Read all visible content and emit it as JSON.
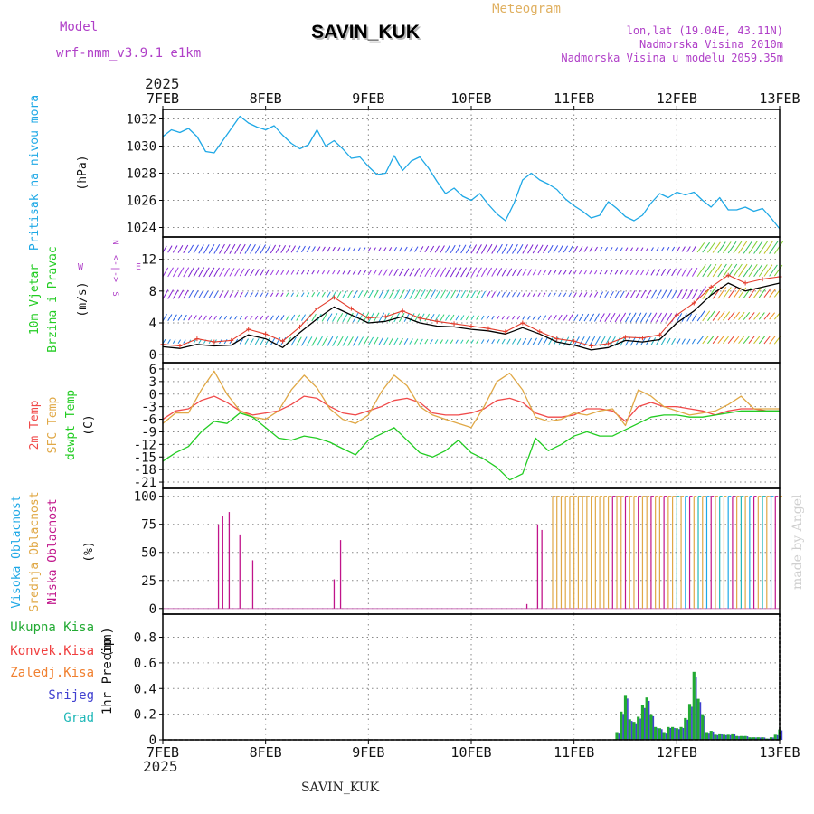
{
  "header": {
    "model_label": "Model",
    "model_name": "wrf-nmm_v3.9.1  e1km",
    "station": "SAVIN_KUK",
    "meteogram": "Meteogram",
    "lonlat": "lon,lat (19.04E, 43.11N)",
    "elevation": "Nadmorska Visina 2010m",
    "model_elevation": "Nadmorska Visina u modelu 2059.35m",
    "year": "2025",
    "footer_station": "SAVIN_KUK",
    "credit": "made by Angel"
  },
  "colors": {
    "pressure": "#1ea8e6",
    "temp2m": "#f04a4a",
    "sfc": "#e0a846",
    "dewpt": "#22cc22",
    "wind_speed": "#000000",
    "gust": "#e33c2c",
    "cloud_high": "#1ea8e6",
    "cloud_mid": "#e0a846",
    "cloud_low": "#c0148a",
    "precip_total": "#22aa33",
    "snow": "#4040d0",
    "grad": "#20b8b8",
    "label_purple": "#b040c8",
    "label_gold": "#e0b060"
  },
  "chart_data": [
    {
      "type": "line",
      "panel": "pressure",
      "ylabel_left": "Pritisak na nivou mora",
      "ylabel_unit": "(hPa)",
      "x_ticks": [
        "7FEB",
        "8FEB",
        "9FEB",
        "10FEB",
        "11FEB",
        "12FEB",
        "13FEB"
      ],
      "x_range": [
        0,
        144
      ],
      "ylim": [
        1023.3,
        1032.7
      ],
      "y_ticks": [
        "1024",
        "1026",
        "1028",
        "1030",
        "1032"
      ],
      "series": [
        {
          "x": [
            0,
            2,
            4,
            6,
            8,
            10,
            12,
            14,
            16,
            18,
            20,
            22,
            24,
            26,
            28,
            30,
            32,
            34,
            36,
            38,
            40,
            42,
            44,
            46,
            48,
            50,
            52,
            54,
            56,
            58,
            60,
            62,
            64,
            66,
            68,
            70,
            72,
            74,
            76,
            78,
            80,
            82,
            84,
            86,
            88,
            90,
            92,
            94,
            96,
            98,
            100,
            102,
            104,
            106,
            108,
            110,
            112,
            114,
            116,
            118,
            120,
            122,
            124,
            126,
            128,
            130,
            132,
            134,
            136,
            138,
            140,
            142,
            144
          ],
          "values": [
            1030.7,
            1031.2,
            1031.0,
            1031.3,
            1030.7,
            1029.6,
            1029.5,
            1030.4,
            1031.3,
            1032.2,
            1031.7,
            1031.4,
            1031.2,
            1031.5,
            1030.8,
            1030.2,
            1029.8,
            1030.1,
            1031.2,
            1030.0,
            1030.4,
            1029.8,
            1029.1,
            1029.2,
            1028.5,
            1027.9,
            1028.0,
            1029.3,
            1028.2,
            1028.9,
            1029.2,
            1028.4,
            1027.4,
            1026.5,
            1026.9,
            1026.3,
            1026.0,
            1026.5,
            1025.7,
            1025.0,
            1024.5,
            1025.8,
            1027.5,
            1028.0,
            1027.5,
            1027.2,
            1026.8,
            1026.1,
            1025.6,
            1025.2,
            1024.7,
            1024.9,
            1025.9,
            1025.4,
            1024.8,
            1024.5,
            1024.9,
            1025.8,
            1026.5,
            1026.2,
            1026.6,
            1026.4,
            1026.6,
            1026.0,
            1025.5,
            1026.2,
            1025.3,
            1025.3,
            1025.5,
            1025.2,
            1025.4,
            1024.7,
            1023.9
          ]
        }
      ]
    },
    {
      "type": "line",
      "panel": "wind",
      "ylabel_left": [
        "10m Vjetar",
        "Brzina i Pravac"
      ],
      "ylabel_unit": "(m/s)",
      "compass": {
        "n": "N",
        "e": "E",
        "w": "W",
        "s": "S"
      },
      "ylim": [
        -1,
        14.8
      ],
      "y_ticks": [
        "0",
        "4",
        "8",
        "12"
      ],
      "series": [
        {
          "name": "speed",
          "x": [
            0,
            4,
            8,
            12,
            16,
            20,
            24,
            28,
            32,
            36,
            40,
            44,
            48,
            52,
            56,
            60,
            64,
            68,
            72,
            76,
            80,
            84,
            88,
            92,
            96,
            100,
            104,
            108,
            112,
            116,
            120,
            124,
            128,
            132,
            136,
            140,
            144
          ],
          "values": [
            1.0,
            0.8,
            1.3,
            1.1,
            1.2,
            2.5,
            2.0,
            0.9,
            2.8,
            4.5,
            6.0,
            5.0,
            4.0,
            4.2,
            4.8,
            4.0,
            3.6,
            3.5,
            3.2,
            3.0,
            2.6,
            3.4,
            2.6,
            1.6,
            1.2,
            0.6,
            0.9,
            1.8,
            1.6,
            1.9,
            4.0,
            5.5,
            7.5,
            9.0,
            8.0,
            8.5,
            9.0
          ]
        },
        {
          "name": "gust",
          "x": [
            0,
            4,
            8,
            12,
            16,
            20,
            24,
            28,
            32,
            36,
            40,
            44,
            48,
            52,
            56,
            60,
            64,
            68,
            72,
            76,
            80,
            84,
            88,
            92,
            96,
            100,
            104,
            108,
            112,
            116,
            120,
            124,
            128,
            132,
            136,
            140,
            144
          ],
          "values": [
            1.3,
            1.1,
            2.0,
            1.6,
            1.8,
            3.2,
            2.6,
            1.7,
            3.5,
            5.8,
            7.2,
            5.8,
            4.6,
            4.8,
            5.5,
            4.6,
            4.2,
            3.9,
            3.6,
            3.3,
            2.9,
            4.0,
            2.9,
            2.0,
            1.7,
            1.1,
            1.4,
            2.2,
            2.1,
            2.5,
            5.0,
            6.5,
            8.5,
            10.0,
            9.0,
            9.5,
            9.8
          ]
        }
      ]
    },
    {
      "type": "line",
      "panel": "temperature",
      "ylabel_left": [
        "2m Temp",
        "SFC Temp",
        "dewpt Temp"
      ],
      "ylabel_unit": "(C)",
      "ylim": [
        -22.5,
        7.5
      ],
      "y_ticks": [
        "6",
        "3",
        "0",
        "-3",
        "-6",
        "-9",
        "-12",
        "-15",
        "-18",
        "-21"
      ],
      "x": [
        0,
        3,
        6,
        9,
        12,
        15,
        18,
        21,
        24,
        27,
        30,
        33,
        36,
        39,
        42,
        45,
        48,
        51,
        54,
        57,
        60,
        63,
        66,
        69,
        72,
        75,
        78,
        81,
        84,
        87,
        90,
        93,
        96,
        99,
        102,
        105,
        108,
        111,
        114,
        117,
        120,
        123,
        126,
        129,
        132,
        135,
        138,
        141,
        144
      ],
      "series": [
        {
          "name": "2m Temp",
          "values": [
            -6.0,
            -4.0,
            -3.5,
            -1.5,
            -0.5,
            -2.0,
            -4.0,
            -5.0,
            -4.5,
            -4.0,
            -2.5,
            -0.5,
            -1.0,
            -3.0,
            -4.5,
            -5.0,
            -4.0,
            -3.0,
            -1.5,
            -1.0,
            -2.0,
            -4.5,
            -5.0,
            -5.0,
            -4.5,
            -3.5,
            -1.5,
            -1.0,
            -2.0,
            -4.5,
            -5.5,
            -5.5,
            -5.0,
            -3.5,
            -3.5,
            -4.0,
            -6.5,
            -3.0,
            -2.0,
            -3.0,
            -3.0,
            -3.5,
            -4.0,
            -5.0,
            -4.0,
            -3.5,
            -3.5,
            -4.0,
            -4.0
          ]
        },
        {
          "name": "SFC Temp",
          "values": [
            -7.0,
            -4.5,
            -4.5,
            1.0,
            5.5,
            0.0,
            -4.0,
            -5.5,
            -6.0,
            -4.0,
            1.0,
            4.5,
            1.5,
            -3.5,
            -6.0,
            -7.0,
            -5.0,
            0.5,
            4.5,
            2.0,
            -3.0,
            -5.0,
            -6.0,
            -7.0,
            -8.0,
            -3.0,
            3.0,
            5.0,
            1.0,
            -5.5,
            -6.5,
            -6.0,
            -4.5,
            -5.0,
            -4.0,
            -3.5,
            -7.5,
            1.0,
            -0.5,
            -3.0,
            -4.0,
            -5.0,
            -4.5,
            -4.0,
            -2.5,
            -0.5,
            -3.5,
            -3.5,
            -3.5
          ]
        },
        {
          "name": "dewpt Temp",
          "values": [
            -16.0,
            -14.0,
            -12.5,
            -9.0,
            -6.5,
            -7.0,
            -4.5,
            -5.5,
            -8.0,
            -10.5,
            -11.0,
            -10.0,
            -10.5,
            -11.5,
            -13.0,
            -14.5,
            -11.0,
            -9.5,
            -8.0,
            -11.0,
            -14.0,
            -15.0,
            -13.5,
            -11.0,
            -14.0,
            -15.5,
            -17.5,
            -20.5,
            -19.0,
            -10.5,
            -13.5,
            -12.0,
            -10.0,
            -9.0,
            -10.0,
            -10.0,
            -8.5,
            -7.0,
            -5.5,
            -5.0,
            -5.0,
            -5.5,
            -5.5,
            -5.0,
            -4.5,
            -4.0,
            -4.0,
            -4.0,
            -4.0
          ]
        }
      ]
    },
    {
      "type": "bar",
      "panel": "clouds",
      "ylabel_left": [
        "Visoka Oblacnost",
        "Srednja Oblacnost",
        "Niska Oblacnost"
      ],
      "ylabel_unit": "(%)",
      "ylim": [
        -5,
        107
      ],
      "y_ticks": [
        "0",
        "25",
        "50",
        "75",
        "100"
      ],
      "low_spikes": {
        "x": [
          13,
          14,
          15.5,
          18,
          21,
          40,
          41.5,
          85,
          87.5,
          88.5
        ],
        "values": [
          75,
          82,
          86,
          66,
          43,
          26,
          61,
          4,
          75,
          70
        ]
      },
      "overcast_from_hour": 91,
      "overcast_value": 100
    },
    {
      "type": "bar",
      "panel": "precip",
      "ylabel_left": [
        "Ukupna Kisa",
        "Konvek.Kisa",
        "Zaledj.Kisa",
        "Snijeg",
        "Grad"
      ],
      "ylabel_unit": [
        "1hr Precip",
        "(mm)"
      ],
      "ylim": [
        0,
        0.98
      ],
      "y_ticks": [
        "0",
        "0.2",
        "0.4",
        "0.6",
        "0.8"
      ],
      "x": [
        106,
        107,
        108,
        109,
        110,
        111,
        112,
        113,
        114,
        115,
        116,
        117,
        118,
        119,
        120,
        121,
        122,
        123,
        124,
        125,
        126,
        127,
        128,
        129,
        130,
        131,
        132,
        133,
        134,
        135,
        136,
        137,
        138,
        139,
        140,
        141,
        142,
        143,
        144
      ],
      "values": [
        0.06,
        0.22,
        0.35,
        0.16,
        0.14,
        0.18,
        0.27,
        0.33,
        0.2,
        0.1,
        0.09,
        0.06,
        0.1,
        0.1,
        0.09,
        0.1,
        0.17,
        0.28,
        0.53,
        0.32,
        0.2,
        0.06,
        0.07,
        0.04,
        0.05,
        0.04,
        0.04,
        0.05,
        0.03,
        0.03,
        0.03,
        0.02,
        0.02,
        0.02,
        0.02,
        0.01,
        0.02,
        0.04,
        0.08
      ]
    }
  ]
}
